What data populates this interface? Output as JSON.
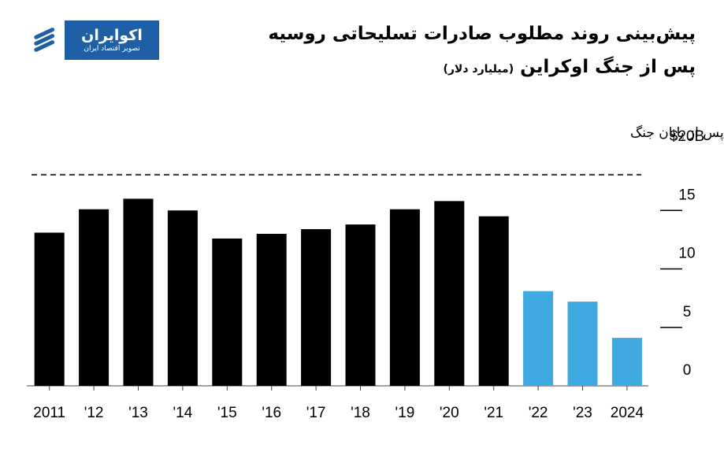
{
  "logo": {
    "name": "اکوایران",
    "tagline": "تصویر اقتصاد ایران"
  },
  "header": {
    "title": "پیش‌بینی روند مطلوب صادرات تسلیحاتی روسیه",
    "subtitle": "پس از جنگ اوکراین",
    "unit": "(میلیارد دلار)"
  },
  "colors": {
    "actual": "#000000",
    "forecast": "#3fa9e1",
    "brand": "#1f5fa6"
  },
  "chart_data": {
    "type": "bar",
    "categories": [
      "2011",
      "'12",
      "'13",
      "'14",
      "'15",
      "'16",
      "'17",
      "'18",
      "'19",
      "'20",
      "'21",
      "'22",
      "'23",
      "2024"
    ],
    "values": [
      13.1,
      15.1,
      16.0,
      15.0,
      12.6,
      13.0,
      13.4,
      13.8,
      15.1,
      15.8,
      14.5,
      8.1,
      7.2,
      4.1
    ],
    "forecast_from_index": 11,
    "ylim": [
      0,
      20
    ],
    "y_ticks": [
      0,
      5,
      10,
      15,
      20
    ],
    "y_tick_labels": [
      "0",
      "5",
      "10",
      "15",
      "$20B"
    ],
    "reference_line": {
      "value": 19,
      "label": "تخمین میزان صادرات پس از پایان جنگ",
      "style": "dashed"
    }
  }
}
